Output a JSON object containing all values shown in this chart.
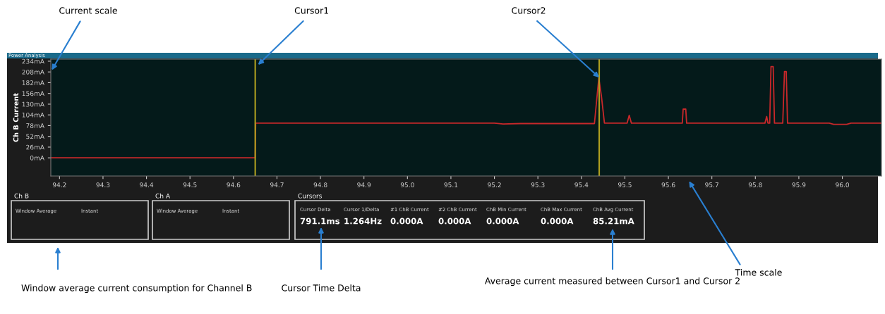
{
  "chart_data": {
    "type": "line",
    "title": "Power Analysis",
    "ylabel": "Ch B Current",
    "x": [
      94.18,
      94.65,
      94.651,
      95.2,
      95.22,
      95.26,
      95.43,
      95.44,
      95.446,
      95.453,
      95.505,
      95.51,
      95.515,
      95.632,
      95.634,
      95.64,
      95.642,
      95.822,
      95.826,
      95.829,
      95.833,
      95.836,
      95.841,
      95.844,
      95.863,
      95.867,
      95.871,
      95.874,
      95.97,
      95.98,
      96.01,
      96.02,
      96.09
    ],
    "series": [
      {
        "color": "#c8282a",
        "values": [
          0,
          0,
          84,
          84,
          82,
          83,
          83,
          193,
          150,
          84,
          84,
          103,
          84,
          84,
          118,
          118,
          84,
          84,
          100,
          84,
          84,
          221,
          221,
          84,
          84,
          209,
          209,
          84,
          84,
          81,
          81,
          84,
          84
        ]
      }
    ],
    "xlim": [
      94.18,
      96.09
    ],
    "xticks": [
      94.2,
      94.3,
      94.4,
      94.5,
      94.6,
      94.7,
      94.8,
      94.9,
      {
        "value": 95,
        "label": "95.0"
      },
      95.1,
      95.2,
      95.3,
      95.4,
      95.5,
      95.6,
      95.7,
      95.8,
      95.9,
      {
        "value": 96,
        "label": "96.0"
      }
    ],
    "ylim": [
      -44,
      239
    ],
    "yticks": [
      {
        "value": 0,
        "label": "0mA"
      },
      {
        "value": 26,
        "label": "26mA"
      },
      {
        "value": 52,
        "label": "52mA"
      },
      {
        "value": 78,
        "label": "78mA"
      },
      {
        "value": 104,
        "label": "104mA"
      },
      {
        "value": 130,
        "label": "130mA"
      },
      {
        "value": 156,
        "label": "156mA"
      },
      {
        "value": 182,
        "label": "182mA"
      },
      {
        "value": 208,
        "label": "208mA"
      },
      {
        "value": 234,
        "label": "234mA"
      }
    ],
    "ref_lines": [
      {
        "axis": "x",
        "value": 94.65,
        "label": "Cursor1",
        "color": "#b0a020"
      },
      {
        "axis": "x",
        "value": 95.441,
        "label": "Cursor2",
        "color": "#b0a020"
      }
    ],
    "grid": false,
    "legend": false,
    "annotations": [
      "Current scale",
      "Time scale",
      "Window average current consumption for Channel B",
      "Cursor Time Delta",
      "Average current measured between Cursor1 and Cursor 2",
      "Ch B",
      "Window Average",
      "Instant",
      "Ch A",
      "Window Average",
      "Instant",
      "Cursors",
      "Cursor Delta",
      "791.1ms",
      "Cursor 1/Delta",
      "1.264Hz",
      "#1 ChB Current",
      "0.000A",
      "#2 ChB Current",
      "0.000A",
      "ChB Min Current",
      "0.000A",
      "ChB Max Current",
      "0.000A",
      "ChB Avg Current",
      "85.21mA"
    ]
  }
}
